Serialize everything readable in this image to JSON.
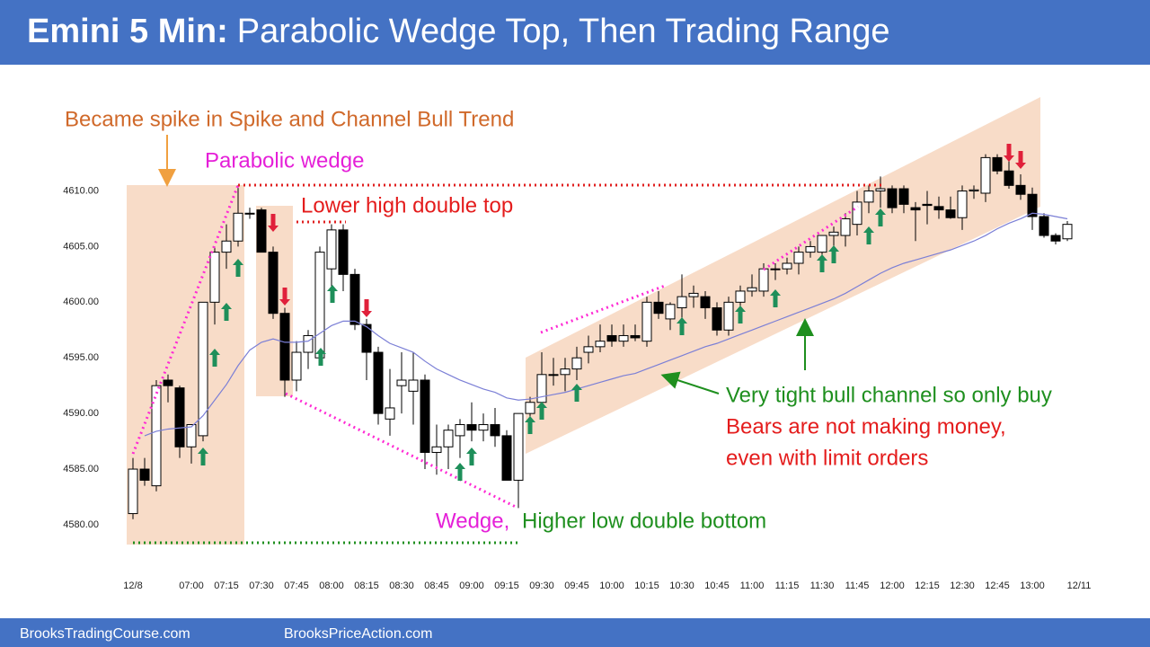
{
  "header": {
    "title_bold": "Emini 5 Min:",
    "title": "Parabolic Wedge Top, Then Trading Range"
  },
  "footer": [
    "BrooksTradingCourse.com",
    "BrooksPriceAction.com"
  ],
  "chart_data": {
    "type": "candlestick",
    "annotations": [
      "Became spike in Spike and Channel Bull Trend",
      "Parabolic wedge",
      "Lower high double top",
      "Very tight bull channel so only buy",
      "Bears are not making money,",
      "even with limit orders",
      "Wedge,",
      "Higher low double bottom"
    ],
    "categories": [
      "12/8",
      null,
      null,
      null,
      null,
      "07:00",
      null,
      null,
      "07:15",
      null,
      null,
      "07:30",
      null,
      null,
      "07:45",
      null,
      null,
      "08:00",
      null,
      null,
      "08:15",
      null,
      null,
      "08:30",
      null,
      null,
      "08:45",
      null,
      null,
      "09:00",
      null,
      null,
      "09:15",
      null,
      null,
      "09:30",
      null,
      null,
      "09:45",
      null,
      null,
      "10:00",
      null,
      null,
      "10:15",
      null,
      null,
      "10:30",
      null,
      null,
      "10:45",
      null,
      null,
      "11:00",
      null,
      null,
      "11:15",
      null,
      null,
      "11:30",
      null,
      null,
      "11:45",
      null,
      null,
      "12:00",
      null,
      null,
      "12:15",
      null,
      null,
      "12:30",
      null,
      null,
      "12:45",
      null,
      null,
      "13:00",
      null,
      null,
      null,
      "12/11"
    ],
    "open": [
      4581,
      4585,
      4583.5,
      4593,
      4592.3,
      4587,
      4588,
      4600,
      4604.5,
      4605.5,
      4608,
      4608.3,
      4604.5,
      4599,
      4593,
      4595.5,
      4595,
      4603,
      4606.5,
      4602.5,
      4598,
      4595.5,
      4589.5,
      4592.5,
      4592,
      4593,
      4586.5,
      4587,
      4588,
      4589,
      4588.5,
      4589,
      4588,
      4584,
      4590,
      4591,
      4593.5,
      4593.5,
      4594,
      4595.5,
      4596,
      4597,
      4596.5,
      4597,
      4596.5,
      4600,
      4598.5,
      4599.5,
      4600.5,
      4600.5,
      4599.5,
      4597.5,
      4600,
      4601,
      4601,
      4603,
      4603,
      4603.5,
      4604.5,
      4604.5,
      4606,
      4606,
      4607,
      4609,
      4610,
      4610.2,
      4610.2,
      4608.5,
      4608.8,
      4608.6,
      4608.3,
      4607.6,
      4610,
      4609.8,
      4613,
      4611.8,
      4610.5,
      4609.7,
      4607.7,
      4606,
      4605.7,
      null
    ],
    "high": [
      4586,
      4586,
      4593,
      4593.5,
      4592.5,
      4589,
      4600,
      4605,
      4607,
      4610.5,
      4608.5,
      4608.5,
      4605,
      4599.5,
      4596.5,
      4597.5,
      4605,
      4607,
      4607,
      4603,
      4598.5,
      4596,
      4594,
      4595.5,
      4595.5,
      4593.5,
      4589,
      4589,
      4589.5,
      4591,
      4590,
      4590.5,
      4588.5,
      4590,
      4591.5,
      4595.5,
      4595,
      4595,
      4596,
      4597,
      4598,
      4598,
      4598,
      4598,
      4600.5,
      4601,
      4600,
      4602.5,
      4601.5,
      4601,
      4600,
      4600.5,
      4601.5,
      4602.5,
      4603.5,
      4603.5,
      4604,
      4605,
      4605.5,
      4606,
      4606.8,
      4608,
      4610,
      4610.5,
      4611.3,
      4610.5,
      4610.5,
      4609,
      4610,
      4609.5,
      4609.5,
      4610.5,
      4610.5,
      4613.3,
      4613.3,
      4613,
      4611.5,
      4610.3,
      4608,
      4606.2,
      4607.3,
      null
    ],
    "low": [
      4580.5,
      4583.5,
      4583,
      4591,
      4586,
      4585.5,
      4587.5,
      4598,
      4603,
      4605,
      4607.5,
      4604.5,
      4598.5,
      4591.5,
      4592,
      4594,
      4594.5,
      4601,
      4601,
      4597.5,
      4593,
      4589,
      4588,
      4590,
      4589,
      4585,
      4584.5,
      4585,
      4586,
      4587.5,
      4587.5,
      4587,
      4584,
      4581.5,
      4588.5,
      4590,
      4592.5,
      4592,
      4593,
      4594.5,
      4595.5,
      4596,
      4596,
      4596.5,
      4596,
      4598.5,
      4597.5,
      4598.5,
      4599.5,
      4598.5,
      4597,
      4597,
      4599,
      4600.5,
      4600.5,
      4602,
      4602.5,
      4602.5,
      4604,
      4603,
      4605,
      4605,
      4606,
      4608,
      4608.5,
      4608,
      4608,
      4605.5,
      4607,
      4607.5,
      4607.5,
      4606.5,
      4609.3,
      4609,
      4611.5,
      4610.2,
      4609.2,
      4606.5,
      4605.8,
      4605.2,
      4605.5,
      null
    ],
    "close": [
      4585,
      4584,
      4592.5,
      4592.5,
      4587,
      4589,
      4600,
      4604.5,
      4605.5,
      4608,
      4608,
      4604.5,
      4599,
      4593,
      4595.5,
      4597,
      4604.5,
      4606.5,
      4602.5,
      4598,
      4595.5,
      4590,
      4590.5,
      4593,
      4593,
      4586.5,
      4587,
      4588.5,
      4589,
      4588.5,
      4589,
      4588,
      4584,
      4590,
      4591,
      4593.5,
      4593.5,
      4594,
      4595,
      4596,
      4596.5,
      4596.5,
      4597,
      4596.8,
      4600,
      4599,
      4599.8,
      4600.5,
      4600.8,
      4599.5,
      4597.5,
      4600,
      4601,
      4601.3,
      4603,
      4603,
      4603.5,
      4604.5,
      4605,
      4606,
      4606.3,
      4607.5,
      4609,
      4610,
      4610.2,
      4608.5,
      4608.8,
      4608.3,
      4608.7,
      4608.3,
      4607.6,
      4610,
      4610.1,
      4613,
      4611.8,
      4610.5,
      4609.7,
      4607.7,
      4606,
      4605.5,
      4607,
      null
    ],
    "ma": [
      null,
      4588.0,
      4588.4,
      4588.6,
      4588.7,
      4588.8,
      4589.8,
      4591.2,
      4592.6,
      4594.3,
      4595.7,
      4596.4,
      4596.7,
      4596.4,
      4596.4,
      4596.5,
      4597.2,
      4597.9,
      4598.3,
      4598.3,
      4597.8,
      4597.0,
      4596.3,
      4595.9,
      4595.5,
      4594.7,
      4594.0,
      4593.5,
      4593.0,
      4592.6,
      4592.2,
      4591.9,
      4591.4,
      4591.2,
      4591.3,
      4591.5,
      4591.7,
      4591.9,
      4592.2,
      4592.5,
      4592.8,
      4593.1,
      4593.4,
      4593.6,
      4594.0,
      4594.4,
      4594.8,
      4595.2,
      4595.6,
      4596.0,
      4596.3,
      4596.7,
      4597.1,
      4597.5,
      4597.9,
      4598.3,
      4598.7,
      4599.1,
      4599.5,
      4599.9,
      4600.3,
      4600.8,
      4601.4,
      4602.0,
      4602.6,
      4603.1,
      4603.5,
      4603.8,
      4604.1,
      4604.4,
      4604.7,
      4605.1,
      4605.5,
      4606.0,
      4606.6,
      4607.1,
      4607.5,
      4608.0,
      4607.9,
      4607.7,
      4607.5,
      null
    ],
    "up_color": "#ffffff",
    "down_color": "#000000",
    "ma_color": "#7b7fd6",
    "ylim": [
      4578,
      4614
    ],
    "yticks": [
      {
        "value": 4580,
        "label": "4580.00"
      },
      {
        "value": 4585,
        "label": "4585.00"
      },
      {
        "value": 4590,
        "label": "4590.00"
      },
      {
        "value": 4595,
        "label": "4595.00"
      },
      {
        "value": 4600,
        "label": "4600.00"
      },
      {
        "value": 4605,
        "label": "4605.00"
      },
      {
        "value": 4610,
        "label": "4610.00"
      }
    ],
    "grid": false
  }
}
